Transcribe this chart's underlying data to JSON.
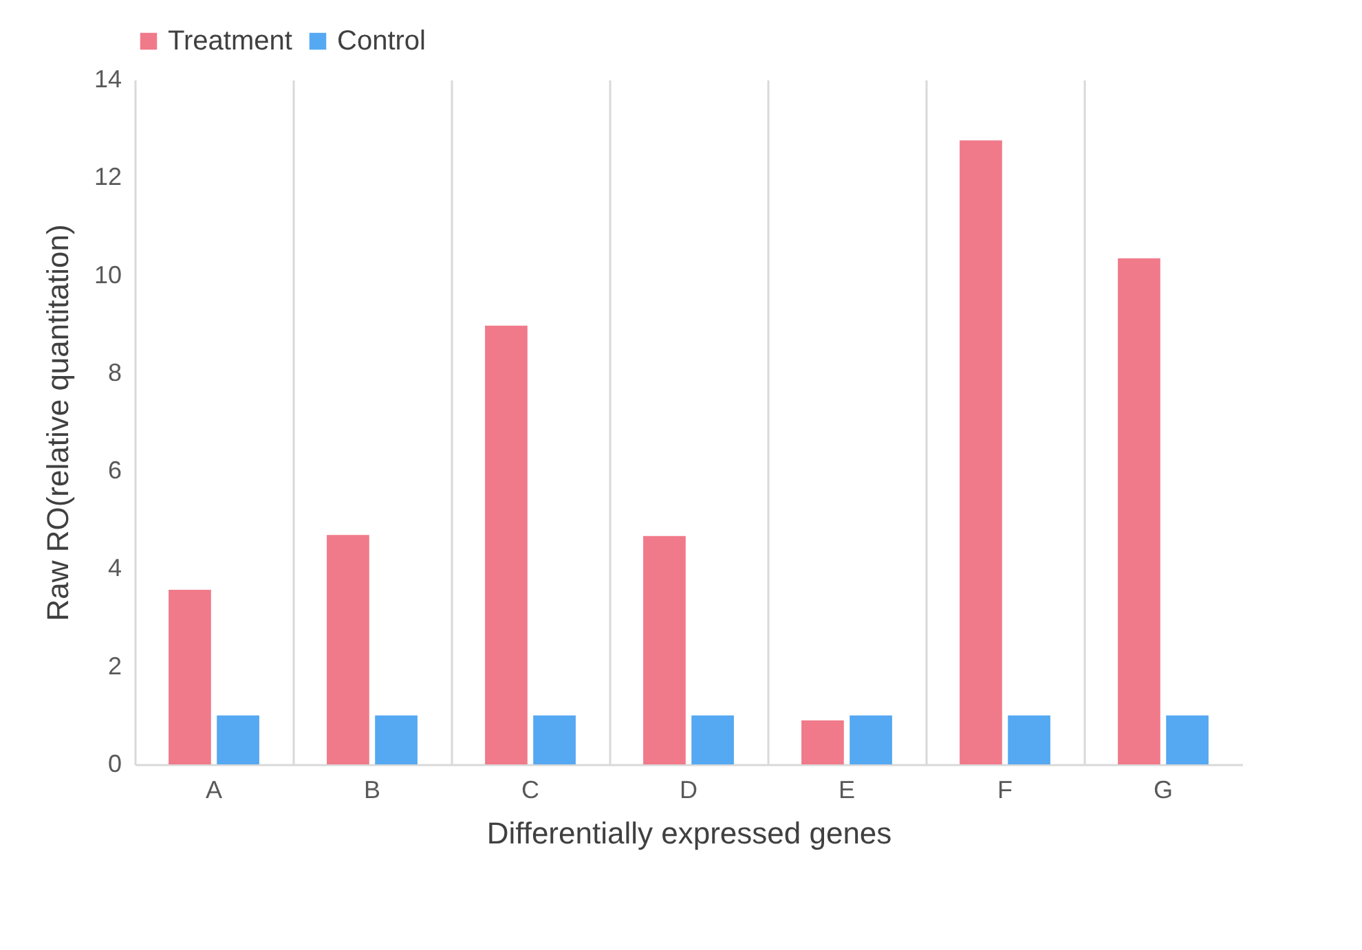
{
  "chart_data": {
    "type": "bar",
    "xlabel": "Differentially expressed genes",
    "ylabel": "Raw RO(relative quantitation)",
    "categories": [
      "A",
      "B",
      "C",
      "D",
      "E",
      "F",
      "G"
    ],
    "series": [
      {
        "name": "Treatment",
        "color": "#f07a8a",
        "values": [
          3.57,
          4.69,
          8.97,
          4.67,
          0.9,
          12.76,
          10.35
        ]
      },
      {
        "name": "Control",
        "color": "#55a8f2",
        "values": [
          1.0,
          1.0,
          1.0,
          1.0,
          1.0,
          1.0,
          1.0
        ]
      }
    ],
    "ylim": [
      0,
      14
    ],
    "yticks": [
      0,
      2,
      4,
      6,
      8,
      10,
      12,
      14
    ],
    "grid": "x",
    "legend": "top"
  }
}
